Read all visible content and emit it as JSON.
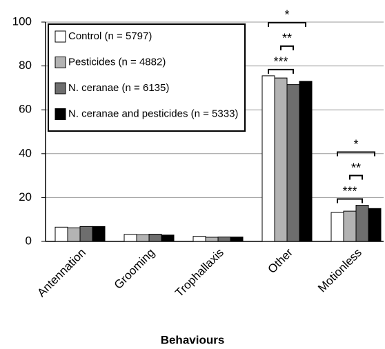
{
  "chart_data": {
    "type": "bar",
    "x_label": "Behaviours",
    "categories": [
      "Antennation",
      "Grooming",
      "Trophallaxis",
      "Other",
      "Motionless"
    ],
    "series": [
      {
        "name": "Control (n = 5797)",
        "color": "#ffffff",
        "values": [
          6.5,
          3.2,
          2.3,
          75.5,
          13.2
        ]
      },
      {
        "name": "Pesticides (n = 4882)",
        "color": "#b3b3b3",
        "values": [
          6.2,
          3.0,
          1.9,
          74.5,
          13.8
        ]
      },
      {
        "name": "N. ceranae (n = 6135)",
        "color": "#6e6e6e",
        "values": [
          6.8,
          3.3,
          2.0,
          71.5,
          16.5
        ]
      },
      {
        "name": "N. ceranae and pesticides (n = 5333)",
        "color": "#000000",
        "values": [
          6.8,
          2.9,
          2.0,
          73.0,
          15.0
        ]
      }
    ],
    "ylim": [
      0,
      100
    ],
    "yticks": [
      0,
      20,
      40,
      60,
      80,
      100
    ],
    "grid": true,
    "annotations": [
      {
        "category": "Other",
        "text": "***"
      },
      {
        "category": "Other",
        "text": "**"
      },
      {
        "category": "Other",
        "text": "*"
      },
      {
        "category": "Motionless",
        "text": "***"
      },
      {
        "category": "Motionless",
        "text": "**"
      },
      {
        "category": "Motionless",
        "text": "*"
      }
    ]
  }
}
